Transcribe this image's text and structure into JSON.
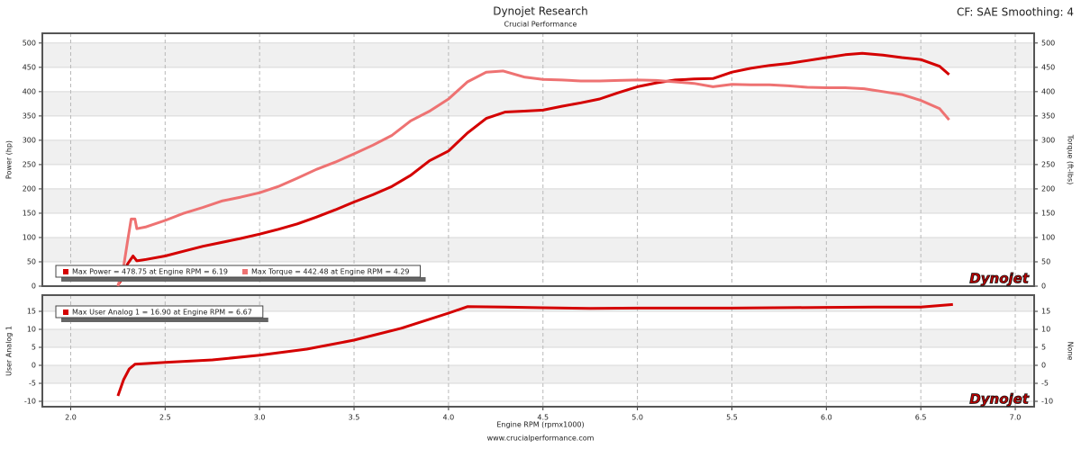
{
  "title": "Dynojet Research",
  "subtitle": "Crucial Performance",
  "corner_note": "CF: SAE Smoothing: 4",
  "footer": "www.crucialperformance.com",
  "chart_data": [
    {
      "type": "line",
      "ylabel": "Power (hp)",
      "y2label": "Torque (ft-lbs)",
      "logo": "Dynojet",
      "grid": true,
      "xlim": [
        1.85,
        7.1
      ],
      "xticks": [
        2,
        2.5,
        3,
        3.5,
        4,
        4.5,
        5,
        5.5,
        6,
        6.5,
        7
      ],
      "ylim": [
        0,
        520
      ],
      "yticks": [
        0,
        50,
        100,
        150,
        200,
        250,
        300,
        350,
        400,
        450,
        500
      ],
      "y2lim": [
        0,
        520
      ],
      "y2ticks": [
        0,
        50,
        100,
        150,
        200,
        250,
        300,
        350,
        400,
        450,
        500
      ],
      "series": [
        {
          "name": "Max Power = 478.75 at Engine RPM = 6.19",
          "color": "#d40000",
          "axis": "y",
          "x": [
            2.25,
            2.28,
            2.3,
            2.33,
            2.35,
            2.4,
            2.5,
            2.6,
            2.7,
            2.8,
            2.9,
            3.0,
            3.1,
            3.2,
            3.3,
            3.4,
            3.5,
            3.6,
            3.7,
            3.8,
            3.9,
            4.0,
            4.1,
            4.2,
            4.3,
            4.4,
            4.5,
            4.6,
            4.7,
            4.8,
            4.9,
            5.0,
            5.1,
            5.2,
            5.3,
            5.4,
            5.5,
            5.6,
            5.7,
            5.8,
            5.9,
            6.0,
            6.1,
            6.19,
            6.3,
            6.4,
            6.5,
            6.6,
            6.65
          ],
          "values": [
            2,
            20,
            45,
            62,
            52,
            55,
            62,
            72,
            82,
            90,
            98,
            107,
            117,
            128,
            142,
            157,
            173,
            188,
            205,
            228,
            258,
            278,
            315,
            345,
            358,
            360,
            362,
            370,
            377,
            385,
            398,
            410,
            418,
            424,
            426,
            427,
            440,
            448,
            454,
            458,
            464,
            470,
            476,
            478.75,
            475,
            470,
            466,
            452,
            435
          ]
        },
        {
          "name": "Max Torque = 442.48 at Engine RPM = 4.29",
          "color": "#ee7272",
          "axis": "y2",
          "x": [
            2.25,
            2.28,
            2.3,
            2.32,
            2.34,
            2.35,
            2.4,
            2.5,
            2.6,
            2.7,
            2.8,
            2.9,
            3.0,
            3.1,
            3.2,
            3.3,
            3.4,
            3.5,
            3.6,
            3.7,
            3.8,
            3.9,
            4.0,
            4.1,
            4.2,
            4.29,
            4.4,
            4.5,
            4.6,
            4.7,
            4.8,
            4.9,
            5.0,
            5.1,
            5.2,
            5.3,
            5.4,
            5.5,
            5.6,
            5.7,
            5.8,
            5.9,
            6.0,
            6.1,
            6.2,
            6.3,
            6.4,
            6.5,
            6.6,
            6.65
          ],
          "values": [
            0,
            40,
            90,
            138,
            138,
            118,
            122,
            135,
            150,
            162,
            175,
            183,
            192,
            205,
            222,
            240,
            255,
            272,
            290,
            310,
            340,
            360,
            385,
            420,
            440,
            442.48,
            430,
            425,
            424,
            422,
            422,
            423,
            424,
            423,
            420,
            417,
            410,
            415,
            414,
            414,
            412,
            409,
            408,
            408,
            406,
            400,
            394,
            382,
            365,
            342
          ]
        }
      ]
    },
    {
      "type": "line",
      "ylabel": "User Analog 1",
      "y2label": "None",
      "xlabel": "Engine RPM (rpmx1000)",
      "logo": "Dynojet",
      "grid": true,
      "xlim": [
        1.85,
        7.1
      ],
      "xticks": [
        {
          "value": 2,
          "label": "2.0"
        },
        {
          "value": 2.5,
          "label": "2.5"
        },
        {
          "value": 3,
          "label": "3.0"
        },
        {
          "value": 3.5,
          "label": "3.5"
        },
        {
          "value": 4,
          "label": "4.0"
        },
        {
          "value": 4.5,
          "label": "4.5"
        },
        {
          "value": 5,
          "label": "5.0"
        },
        {
          "value": 5.5,
          "label": "5.5"
        },
        {
          "value": 6,
          "label": "6.0"
        },
        {
          "value": 6.5,
          "label": "6.5"
        },
        {
          "value": 7,
          "label": "7.0"
        }
      ],
      "ylim": [
        -11.5,
        19.5
      ],
      "yticks": [
        -10,
        -5,
        0,
        5,
        10,
        15
      ],
      "y2lim": [
        -11.5,
        19.5
      ],
      "y2ticks": [
        -10,
        -5,
        0,
        5,
        10,
        15
      ],
      "series": [
        {
          "name": "Max User Analog 1 = 16.90 at Engine RPM = 6.67",
          "color": "#d40000",
          "axis": "y",
          "x": [
            2.25,
            2.28,
            2.31,
            2.34,
            2.5,
            2.75,
            3.0,
            3.25,
            3.5,
            3.75,
            4.0,
            4.1,
            4.3,
            4.5,
            4.75,
            5.0,
            5.5,
            6.0,
            6.25,
            6.5,
            6.67
          ],
          "values": [
            -8.5,
            -4,
            -1,
            0.3,
            0.8,
            1.5,
            2.8,
            4.5,
            7,
            10.3,
            14.5,
            16.3,
            16.2,
            16,
            15.8,
            15.9,
            15.9,
            16.1,
            16.2,
            16.2,
            16.9
          ]
        }
      ]
    }
  ]
}
